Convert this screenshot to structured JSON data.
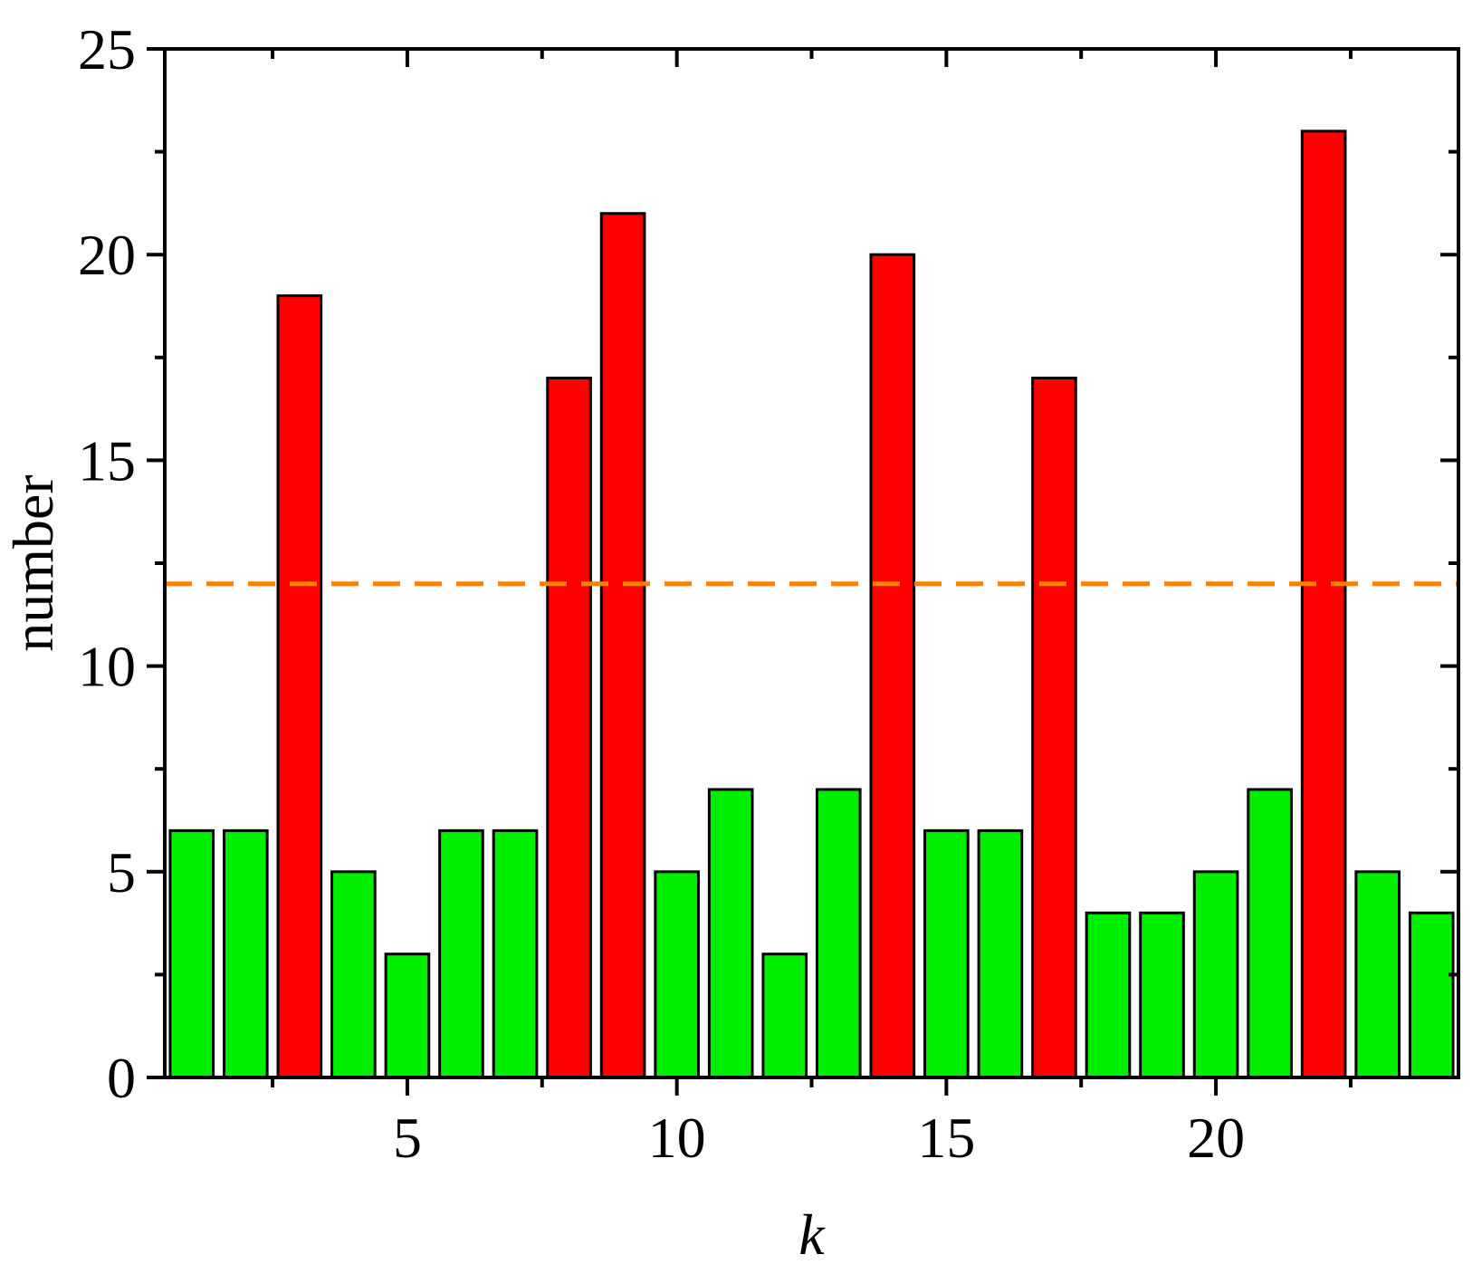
{
  "chart_data": {
    "type": "bar",
    "title": "",
    "xlabel": "k",
    "ylabel": "number",
    "xlim": [
      0.5,
      24.5
    ],
    "ylim": [
      0,
      25
    ],
    "x": [
      1,
      2,
      3,
      4,
      5,
      6,
      7,
      8,
      9,
      10,
      11,
      12,
      13,
      14,
      15,
      16,
      17,
      18,
      19,
      20,
      21,
      22,
      23,
      24
    ],
    "values": [
      6,
      6,
      19,
      5,
      3,
      6,
      6,
      17,
      21,
      5,
      7,
      3,
      7,
      20,
      6,
      6,
      17,
      4,
      4,
      5,
      7,
      23,
      5,
      4
    ],
    "bar_colors": [
      "#00ee00",
      "#00ee00",
      "#ff0000",
      "#00ee00",
      "#00ee00",
      "#00ee00",
      "#00ee00",
      "#ff0000",
      "#ff0000",
      "#00ee00",
      "#00ee00",
      "#00ee00",
      "#00ee00",
      "#ff0000",
      "#00ee00",
      "#00ee00",
      "#ff0000",
      "#00ee00",
      "#00ee00",
      "#00ee00",
      "#00ee00",
      "#ff0000",
      "#00ee00",
      "#00ee00"
    ],
    "x_ticks_major": [
      5,
      10,
      15,
      20
    ],
    "x_ticks_labels": [
      "5",
      "10",
      "15",
      "20"
    ],
    "y_ticks_major": [
      0,
      5,
      10,
      15,
      20,
      25
    ],
    "y_ticks_labels": [
      "0",
      "5",
      "10",
      "15",
      "20",
      "25"
    ],
    "reference_line": {
      "y": 12,
      "style": "dashed",
      "color": "#ff8000"
    },
    "grid": false,
    "legend": "none",
    "colors": {
      "above": "#ff0000",
      "below": "#00ee00",
      "reference": "#ff8000",
      "outline": "#000000"
    }
  }
}
